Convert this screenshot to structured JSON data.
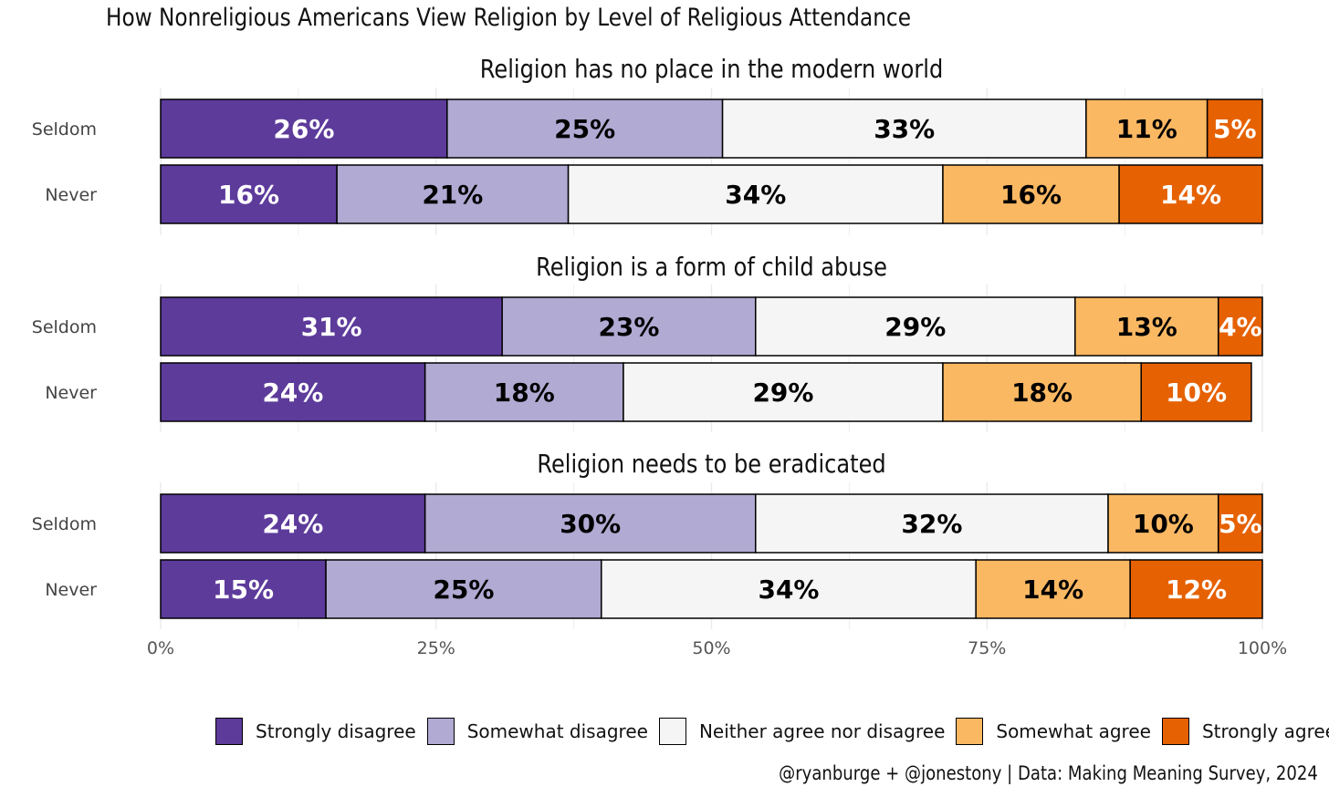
{
  "title": "How Nonreligious Americans View Religion by Level of Religious Attendance",
  "caption": "@ryanburge + @jonestony | Data: Making Meaning Survey, 2024",
  "chart_data": {
    "type": "bar",
    "orientation": "horizontal",
    "stacked": true,
    "x_ticks": [
      "0%",
      "25%",
      "50%",
      "75%",
      "100%"
    ],
    "xlim": [
      0,
      100
    ],
    "legend_position": "bottom",
    "categories_legend": [
      "Strongly disagree",
      "Somewhat disagree",
      "Neither agree nor disagree",
      "Somewhat agree",
      "Strongly agree"
    ],
    "colors": [
      "#5d3b9b",
      "#b1aad3",
      "#f5f5f5",
      "#fbb863",
      "#e66101"
    ],
    "label_colors": [
      "#ffffff",
      "#000000",
      "#000000",
      "#000000",
      "#ffffff"
    ],
    "panels": [
      {
        "title": "Religion has no place in the modern world",
        "rows": [
          {
            "label": "Seldom",
            "values": [
              26,
              25,
              33,
              11,
              5
            ],
            "labels": [
              "26%",
              "25%",
              "33%",
              "11%",
              "5%"
            ]
          },
          {
            "label": "Never",
            "values": [
              16,
              21,
              34,
              16,
              14
            ],
            "labels": [
              "16%",
              "21%",
              "34%",
              "16%",
              "14%"
            ]
          }
        ]
      },
      {
        "title": "Religion is a form of child abuse",
        "rows": [
          {
            "label": "Seldom",
            "values": [
              31,
              23,
              29,
              13,
              4
            ],
            "labels": [
              "31%",
              "23%",
              "29%",
              "13%",
              "4%"
            ]
          },
          {
            "label": "Never",
            "values": [
              24,
              18,
              29,
              18,
              10
            ],
            "labels": [
              "24%",
              "18%",
              "29%",
              "18%",
              "10%"
            ]
          }
        ]
      },
      {
        "title": "Religion needs to be eradicated",
        "rows": [
          {
            "label": "Seldom",
            "values": [
              24,
              30,
              32,
              10,
              5
            ],
            "labels": [
              "24%",
              "30%",
              "32%",
              "10%",
              "5%"
            ]
          },
          {
            "label": "Never",
            "values": [
              15,
              25,
              34,
              14,
              12
            ],
            "labels": [
              "15%",
              "25%",
              "34%",
              "14%",
              "12%"
            ]
          }
        ]
      }
    ]
  },
  "legend": {
    "items": [
      {
        "label": "Strongly disagree",
        "color": "#5d3b9b"
      },
      {
        "label": "Somewhat disagree",
        "color": "#b1aad3"
      },
      {
        "label": "Neither agree nor disagree",
        "color": "#f5f5f5"
      },
      {
        "label": "Somewhat agree",
        "color": "#fbb863"
      },
      {
        "label": "Strongly agree",
        "color": "#e66101"
      }
    ]
  }
}
